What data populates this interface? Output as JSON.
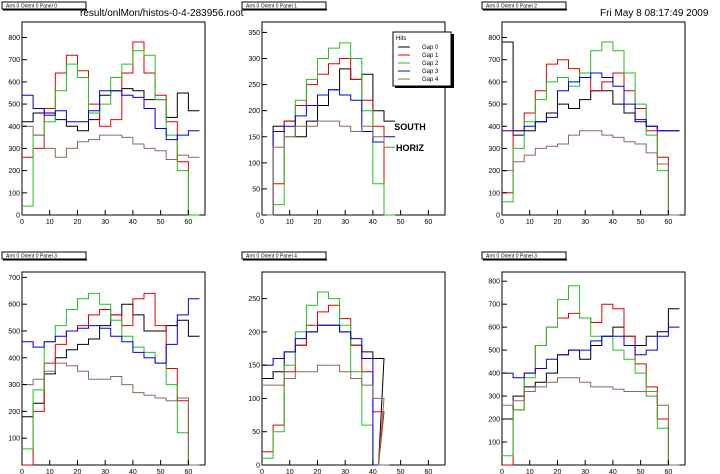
{
  "header": {
    "file": "result/onlMon/histos-0-4-283956.root",
    "date": "Fri May  8 08:17:49 2009"
  },
  "legend": {
    "title": "Hits",
    "entries": [
      "Gap 0",
      "Gap 1",
      "Gap 2",
      "Gap 3",
      "Gap 4"
    ]
  },
  "annotation": {
    "line1": "SOUTH",
    "line2": "HORIZ"
  },
  "colors": {
    "Gap 0": "#000000",
    "Gap 1": "#e00000",
    "Gap 2": "#22c022",
    "Gap 3": "#0000e0",
    "Gap 4": "#8a6a5a",
    "frame": "#000000"
  },
  "chart_data": [
    {
      "type": "line",
      "title": "Arm 0 Orient 0 Panel 0",
      "xlim": [
        0,
        66
      ],
      "ylim": [
        0,
        870
      ],
      "xticks": [
        0,
        10,
        20,
        30,
        40,
        50,
        60
      ],
      "yticks": [
        0,
        100,
        200,
        300,
        400,
        500,
        600,
        700,
        800
      ],
      "x": [
        0,
        4,
        8,
        12,
        16,
        20,
        24,
        28,
        32,
        36,
        40,
        44,
        48,
        52,
        56,
        60
      ],
      "series": [
        {
          "name": "Gap 0",
          "values": [
            420,
            460,
            460,
            430,
            400,
            380,
            430,
            540,
            560,
            570,
            560,
            520,
            520,
            440,
            550,
            470
          ]
        },
        {
          "name": "Gap 1",
          "values": [
            260,
            300,
            480,
            640,
            720,
            650,
            500,
            400,
            430,
            640,
            780,
            640,
            540,
            420,
            240,
            0
          ]
        },
        {
          "name": "Gap 2",
          "values": [
            40,
            360,
            420,
            560,
            680,
            620,
            460,
            500,
            620,
            680,
            740,
            720,
            520,
            360,
            200,
            0
          ]
        },
        {
          "name": "Gap 3",
          "values": [
            540,
            480,
            450,
            470,
            420,
            420,
            470,
            560,
            560,
            540,
            530,
            480,
            390,
            340,
            360,
            380
          ]
        },
        {
          "name": "Gap 4",
          "values": [
            400,
            360,
            300,
            260,
            300,
            330,
            340,
            360,
            360,
            350,
            320,
            300,
            290,
            250,
            270,
            260
          ]
        }
      ]
    },
    {
      "type": "line",
      "title": "Arm 0 Orient 0 Panel 1",
      "xlim": [
        0,
        66
      ],
      "ylim": [
        0,
        370
      ],
      "xticks": [
        0,
        10,
        20,
        30,
        40,
        50,
        60
      ],
      "yticks": [
        0,
        50,
        100,
        150,
        200,
        250,
        300,
        350
      ],
      "x": [
        0,
        4,
        8,
        12,
        16,
        20,
        24,
        28,
        32,
        36,
        40,
        44
      ],
      "series": [
        {
          "name": "Gap 0",
          "values": [
            0,
            170,
            180,
            150,
            180,
            210,
            240,
            280,
            260,
            270,
            200,
            180
          ]
        },
        {
          "name": "Gap 1",
          "values": [
            0,
            60,
            180,
            210,
            250,
            270,
            290,
            300,
            260,
            220,
            170,
            0
          ]
        },
        {
          "name": "Gap 2",
          "values": [
            0,
            20,
            150,
            220,
            260,
            300,
            320,
            330,
            300,
            200,
            60,
            0
          ]
        },
        {
          "name": "Gap 3",
          "values": [
            0,
            160,
            170,
            190,
            210,
            230,
            240,
            230,
            220,
            160,
            140,
            150
          ]
        },
        {
          "name": "Gap 4",
          "values": [
            0,
            130,
            150,
            170,
            170,
            180,
            180,
            170,
            160,
            170,
            150,
            130
          ]
        }
      ]
    },
    {
      "type": "line",
      "title": "Arm 0 Orient 0 Panel 2",
      "xlim": [
        0,
        66
      ],
      "ylim": [
        0,
        870
      ],
      "xticks": [
        0,
        10,
        20,
        30,
        40,
        50,
        60
      ],
      "yticks": [
        0,
        100,
        200,
        300,
        400,
        500,
        600,
        700,
        800
      ],
      "x": [
        0,
        4,
        8,
        12,
        16,
        20,
        24,
        28,
        32,
        36,
        40,
        44,
        48,
        52,
        56,
        60
      ],
      "series": [
        {
          "name": "Gap 0",
          "values": [
            780,
            360,
            380,
            420,
            460,
            500,
            480,
            520,
            560,
            560,
            500,
            460,
            420,
            400,
            380,
            380
          ]
        },
        {
          "name": "Gap 1",
          "values": [
            100,
            380,
            460,
            560,
            680,
            700,
            660,
            620,
            560,
            600,
            640,
            560,
            480,
            380,
            260,
            0
          ]
        },
        {
          "name": "Gap 2",
          "values": [
            60,
            300,
            420,
            520,
            600,
            620,
            580,
            640,
            740,
            780,
            740,
            640,
            500,
            360,
            200,
            0
          ]
        },
        {
          "name": "Gap 3",
          "values": [
            380,
            380,
            400,
            420,
            440,
            560,
            600,
            620,
            640,
            620,
            580,
            500,
            430,
            400,
            380,
            380
          ]
        },
        {
          "name": "Gap 4",
          "values": [
            200,
            240,
            270,
            300,
            310,
            320,
            360,
            380,
            380,
            360,
            350,
            330,
            320,
            280,
            230,
            0
          ]
        }
      ]
    },
    {
      "type": "line",
      "title": "Arm 0 Orient 0 Panel 3",
      "xlim": [
        0,
        66
      ],
      "ylim": [
        0,
        720
      ],
      "xticks": [
        0,
        10,
        20,
        30,
        40,
        50,
        60
      ],
      "yticks": [
        100,
        200,
        300,
        400,
        500,
        600,
        700
      ],
      "x": [
        0,
        4,
        8,
        12,
        16,
        20,
        24,
        28,
        32,
        36,
        40,
        44,
        48,
        52,
        56,
        60
      ],
      "series": [
        {
          "name": "Gap 0",
          "values": [
            180,
            230,
            340,
            400,
            430,
            450,
            470,
            520,
            560,
            600,
            560,
            500,
            500,
            520,
            540,
            480
          ]
        },
        {
          "name": "Gap 1",
          "values": [
            0,
            200,
            380,
            450,
            500,
            520,
            560,
            580,
            560,
            520,
            620,
            640,
            520,
            360,
            240,
            0
          ]
        },
        {
          "name": "Gap 2",
          "values": [
            60,
            280,
            460,
            520,
            580,
            620,
            640,
            600,
            540,
            480,
            440,
            420,
            380,
            300,
            120,
            0
          ]
        },
        {
          "name": "Gap 3",
          "values": [
            460,
            440,
            460,
            480,
            500,
            510,
            520,
            510,
            480,
            460,
            420,
            400,
            380,
            450,
            560,
            620
          ]
        },
        {
          "name": "Gap 4",
          "values": [
            300,
            320,
            350,
            380,
            370,
            350,
            320,
            320,
            330,
            300,
            270,
            260,
            250,
            240,
            250,
            0
          ]
        }
      ]
    },
    {
      "type": "line",
      "title": "Arm 0 Orient 0 Panel 4",
      "xlim": [
        0,
        66
      ],
      "ylim": [
        0,
        290
      ],
      "xticks": [
        0,
        10,
        20,
        30,
        40,
        50,
        60
      ],
      "yticks": [
        0,
        50,
        100,
        150,
        200,
        250
      ],
      "x": [
        0,
        4,
        8,
        12,
        16,
        20,
        24,
        28,
        32,
        36,
        40,
        42
      ],
      "series": [
        {
          "name": "Gap 0",
          "values": [
            130,
            140,
            170,
            180,
            200,
            210,
            210,
            200,
            180,
            170,
            160,
            0
          ]
        },
        {
          "name": "Gap 1",
          "values": [
            20,
            60,
            140,
            180,
            210,
            230,
            240,
            220,
            180,
            140,
            80,
            0
          ]
        },
        {
          "name": "Gap 2",
          "values": [
            10,
            50,
            150,
            200,
            240,
            260,
            250,
            210,
            140,
            60,
            0,
            0
          ]
        },
        {
          "name": "Gap 3",
          "values": [
            150,
            160,
            170,
            190,
            200,
            210,
            210,
            200,
            190,
            160,
            0,
            0
          ]
        },
        {
          "name": "Gap 4",
          "values": [
            120,
            120,
            130,
            140,
            140,
            150,
            150,
            140,
            130,
            120,
            100,
            0
          ]
        }
      ]
    },
    {
      "type": "line",
      "title": "Arm 0 Orient 0 Panel 3",
      "xlim": [
        0,
        66
      ],
      "ylim": [
        0,
        840
      ],
      "xticks": [
        0,
        10,
        20,
        30,
        40,
        50,
        60
      ],
      "yticks": [
        100,
        200,
        300,
        400,
        500,
        600,
        700,
        800
      ],
      "x": [
        0,
        4,
        8,
        12,
        16,
        20,
        24,
        28,
        32,
        36,
        40,
        44,
        48,
        52,
        56,
        60
      ],
      "series": [
        {
          "name": "Gap 0",
          "values": [
            200,
            300,
            340,
            360,
            400,
            480,
            500,
            460,
            520,
            560,
            600,
            560,
            520,
            560,
            580,
            680
          ]
        },
        {
          "name": "Gap 1",
          "values": [
            0,
            240,
            400,
            520,
            600,
            640,
            660,
            640,
            620,
            700,
            680,
            560,
            440,
            340,
            200,
            0
          ]
        },
        {
          "name": "Gap 2",
          "values": [
            40,
            240,
            380,
            520,
            600,
            720,
            780,
            640,
            560,
            560,
            500,
            460,
            400,
            320,
            160,
            0
          ]
        },
        {
          "name": "Gap 3",
          "values": [
            400,
            380,
            400,
            420,
            460,
            480,
            500,
            500,
            540,
            560,
            560,
            520,
            480,
            500,
            560,
            600
          ]
        },
        {
          "name": "Gap 4",
          "values": [
            260,
            280,
            320,
            340,
            360,
            380,
            380,
            360,
            340,
            340,
            330,
            320,
            320,
            300,
            260,
            0
          ]
        }
      ]
    }
  ]
}
